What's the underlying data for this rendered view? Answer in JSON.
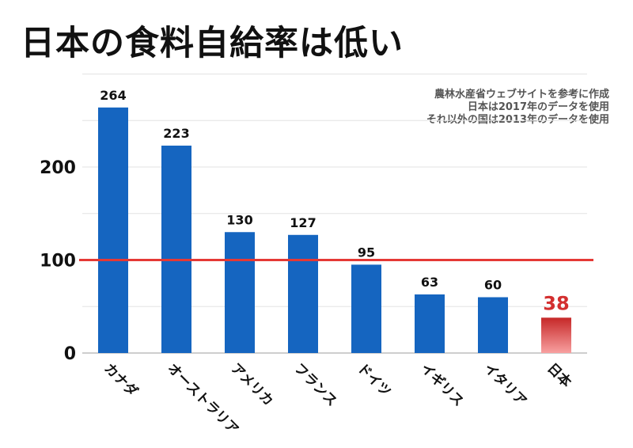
{
  "chart_data": {
    "type": "bar",
    "title": "日本の食料自給率は低い",
    "categories": [
      "カナダ",
      "オーストラリア",
      "アメリカ",
      "フランス",
      "ドイツ",
      "イギリス",
      "イタリア",
      "日本"
    ],
    "values": [
      264,
      223,
      130,
      127,
      95,
      63,
      60,
      38
    ],
    "data_labels": [
      "264",
      "223",
      "130",
      "127",
      "95",
      "63",
      "60",
      "38"
    ],
    "y_ticks": [
      "0",
      "100",
      "200"
    ],
    "ylim": [
      0,
      300
    ],
    "grid": true,
    "reference_line": 100,
    "bar_color": "#1565c0",
    "highlight_category": "日本",
    "highlight_color": "#d32f2f",
    "reference_line_color": "#e53935",
    "notes": [
      "農林水産省ウェブサイトを参考に作成",
      "日本は2017年のデータを使用",
      "それ以外の国は2013年のデータを使用"
    ]
  }
}
